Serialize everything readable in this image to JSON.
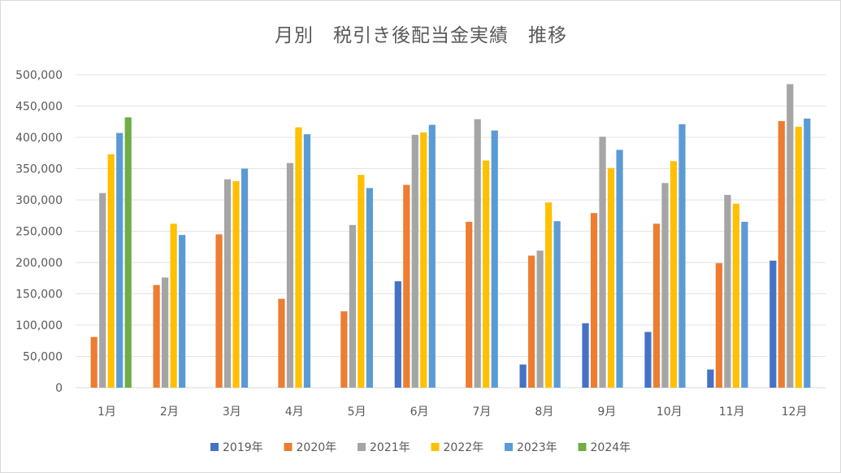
{
  "chart_data": {
    "type": "bar",
    "title": "月別　税引き後配当金実績　推移",
    "categories": [
      "1月",
      "2月",
      "3月",
      "4月",
      "5月",
      "6月",
      "7月",
      "8月",
      "9月",
      "10月",
      "11月",
      "12月"
    ],
    "ylim": [
      0,
      500000
    ],
    "yticks": [
      "0",
      "50,000",
      "100,000",
      "150,000",
      "200,000",
      "250,000",
      "300,000",
      "350,000",
      "400,000",
      "450,000",
      "500,000"
    ],
    "grid": true,
    "legend_position": "bottom",
    "series": [
      {
        "name": "2019年",
        "color": "#4472C4",
        "values": [
          0,
          0,
          0,
          0,
          0,
          170000,
          0,
          37000,
          103000,
          89000,
          29000,
          203000
        ]
      },
      {
        "name": "2020年",
        "color": "#ED7D31",
        "values": [
          81000,
          164000,
          245000,
          142000,
          122000,
          324000,
          265000,
          211000,
          279000,
          262000,
          199000,
          426000
        ]
      },
      {
        "name": "2021年",
        "color": "#A5A5A5",
        "values": [
          311000,
          176000,
          333000,
          359000,
          260000,
          404000,
          429000,
          219000,
          401000,
          327000,
          308000,
          485000
        ]
      },
      {
        "name": "2022年",
        "color": "#FFC000",
        "values": [
          373000,
          262000,
          330000,
          416000,
          340000,
          408000,
          363000,
          296000,
          351000,
          362000,
          294000,
          417000
        ]
      },
      {
        "name": "2023年",
        "color": "#5B9BD5",
        "values": [
          407000,
          244000,
          350000,
          405000,
          319000,
          420000,
          411000,
          266000,
          380000,
          421000,
          265000,
          430000
        ]
      },
      {
        "name": "2024年",
        "color": "#70AD47",
        "values": [
          432000,
          0,
          0,
          0,
          0,
          0,
          0,
          0,
          0,
          0,
          0,
          0
        ]
      }
    ]
  }
}
